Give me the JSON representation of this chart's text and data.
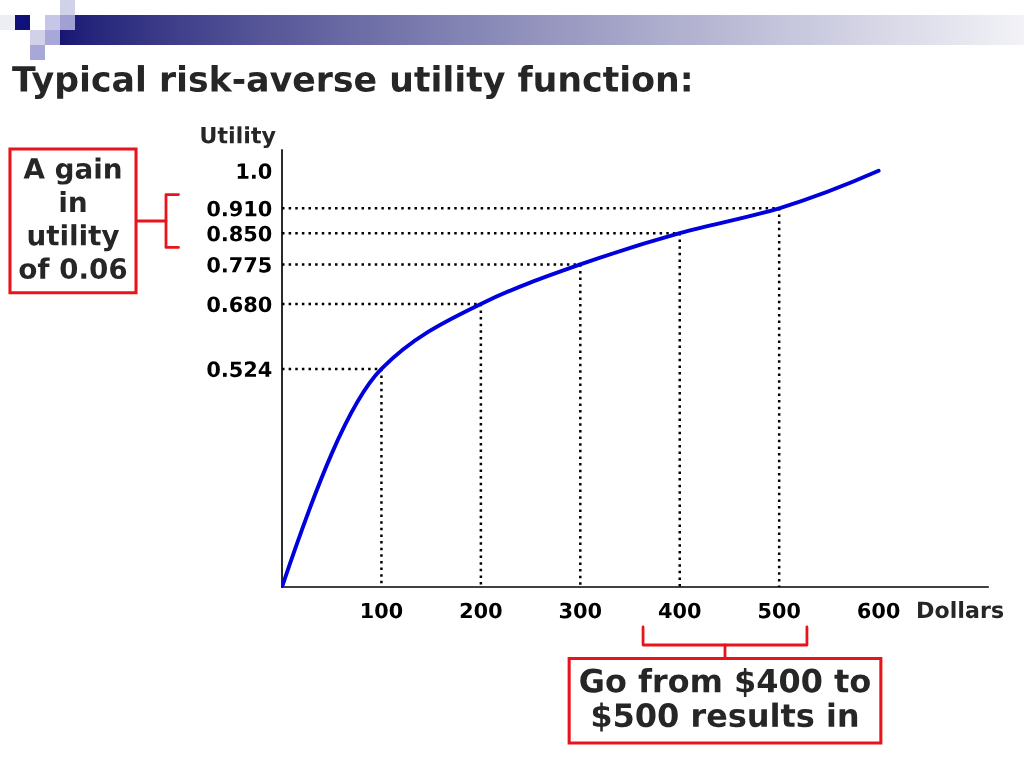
{
  "chart_data": {
    "type": "line",
    "title": "Typical risk-averse utility function:",
    "xlabel": "Dollars",
    "ylabel": "Utility",
    "xlim": [
      0,
      710
    ],
    "xticks": [
      100,
      200,
      300,
      400,
      500,
      600
    ],
    "ylim": [
      0,
      1.05
    ],
    "yticks": [
      {
        "value": 0.524,
        "label": "0.524"
      },
      {
        "value": 0.68,
        "label": "0.680"
      },
      {
        "value": 0.775,
        "label": "0.775"
      },
      {
        "value": 0.85,
        "label": "0.850"
      },
      {
        "value": 0.91,
        "label": "0.910"
      },
      {
        "value": 1.0,
        "label": "1.0"
      }
    ],
    "series": [
      {
        "color": "#000000",
        "line_style": "dotted",
        "x": [
          0,
          100,
          100
        ],
        "values": [
          0.524,
          0.524,
          0
        ]
      },
      {
        "color": "#000000",
        "line_style": "dotted",
        "x": [
          0,
          200,
          200
        ],
        "values": [
          0.68,
          0.68,
          0
        ]
      },
      {
        "color": "#000000",
        "line_style": "dotted",
        "x": [
          0,
          300,
          300
        ],
        "values": [
          0.775,
          0.775,
          0
        ]
      },
      {
        "color": "#000000",
        "line_style": "dotted",
        "x": [
          0,
          400,
          400
        ],
        "values": [
          0.85,
          0.85,
          0
        ]
      },
      {
        "color": "#000000",
        "line_style": "dotted",
        "x": [
          0,
          500,
          500
        ],
        "values": [
          0.91,
          0.91,
          0
        ]
      },
      {
        "color": "#0000dd",
        "line_style": "solid",
        "x": [
          0,
          100,
          200,
          300,
          400,
          500,
          600
        ],
        "values": [
          0,
          0.524,
          0.68,
          0.775,
          0.85,
          0.91,
          1.0
        ]
      }
    ],
    "annotations": [
      "A gain\nin\nutility\nof 0.06",
      "Go from $400 to\n$500 results in"
    ]
  }
}
